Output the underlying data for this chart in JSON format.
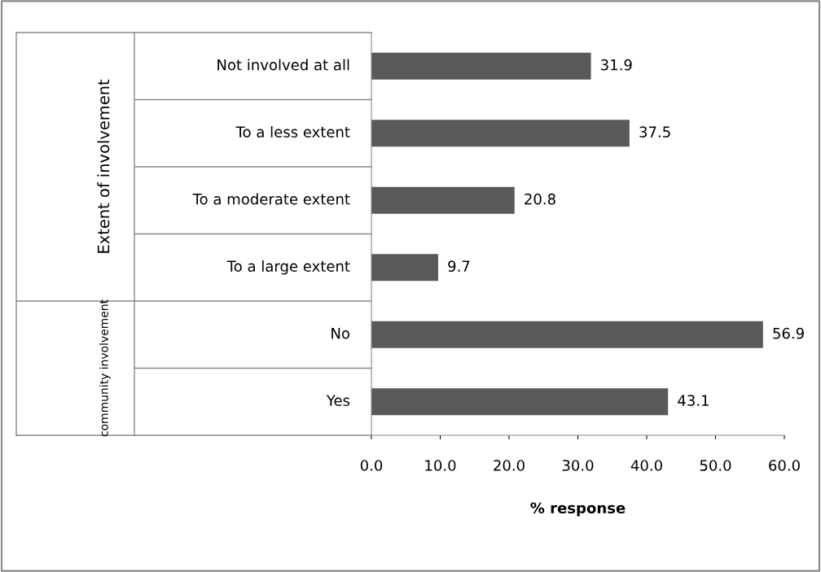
{
  "chart_data": {
    "type": "bar",
    "orientation": "horizontal",
    "categories": [
      "Not involved at all",
      "To a less extent",
      "To a moderate extent",
      "To a large extent",
      "No",
      "Yes"
    ],
    "values": [
      31.9,
      37.5,
      20.8,
      9.7,
      56.9,
      43.1
    ],
    "color": "#595959",
    "data_labels": true,
    "xlim": [
      0,
      60
    ],
    "xticks": [
      {
        "value": 0,
        "label": "0.0"
      },
      {
        "value": 10,
        "label": "10.0"
      },
      {
        "value": 20,
        "label": "20.0"
      },
      {
        "value": 30,
        "label": "30.0"
      },
      {
        "value": 40,
        "label": "40.0"
      },
      {
        "value": 50,
        "label": "50.0"
      },
      {
        "value": 60,
        "label": "60.0"
      }
    ],
    "xlabel": "% response",
    "grid": false,
    "annotations": [
      "Extent of involvement",
      "community involvement"
    ]
  }
}
